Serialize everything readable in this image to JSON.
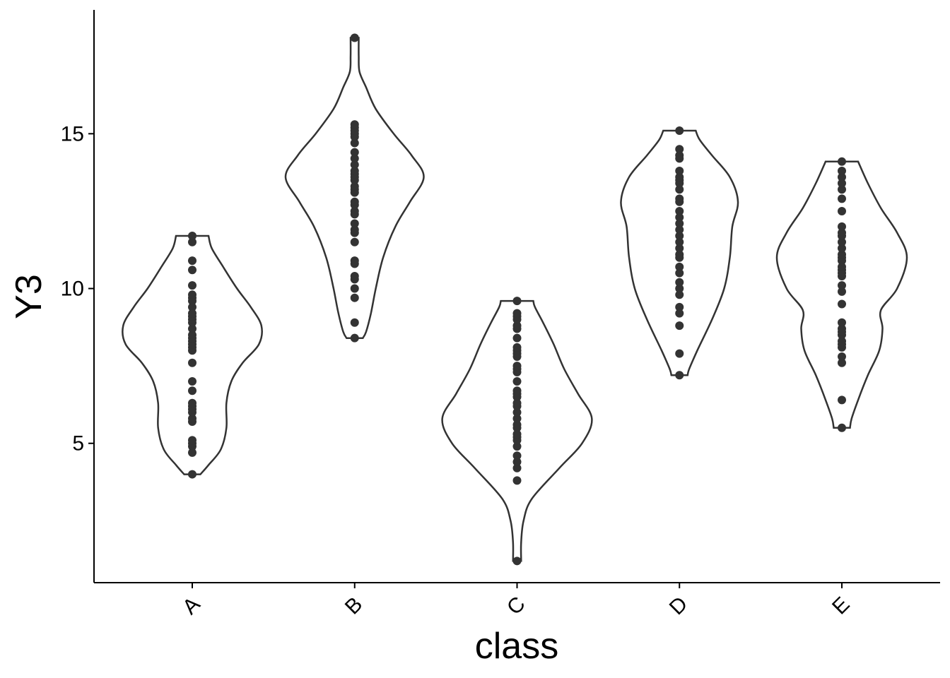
{
  "chart_data": {
    "type": "violin",
    "xlabel": "class",
    "ylabel": "Y3",
    "categories": [
      "A",
      "B",
      "C",
      "D",
      "E"
    ],
    "ylim": [
      0.5,
      19
    ],
    "yticks": [
      5,
      10,
      15
    ],
    "grid": false,
    "legend": "none",
    "colors": {
      "outline": "#333333",
      "points": "#333333",
      "fill": "#ffffff"
    },
    "violins": [
      {
        "category": "A",
        "profile": [
          [
            4.0,
            0.1
          ],
          [
            4.3,
            0.2
          ],
          [
            4.8,
            0.35
          ],
          [
            5.5,
            0.42
          ],
          [
            6.3,
            0.42
          ],
          [
            7.0,
            0.48
          ],
          [
            7.6,
            0.62
          ],
          [
            8.2,
            0.82
          ],
          [
            8.8,
            0.85
          ],
          [
            9.4,
            0.72
          ],
          [
            10.0,
            0.55
          ],
          [
            10.7,
            0.38
          ],
          [
            11.3,
            0.24
          ],
          [
            11.7,
            0.2
          ]
        ],
        "points": [
          4.0,
          4.7,
          4.9,
          5.0,
          5.1,
          5.7,
          5.8,
          6.0,
          6.1,
          6.2,
          6.3,
          6.7,
          7.0,
          7.6,
          8.0,
          8.1,
          8.2,
          8.3,
          8.4,
          8.5,
          8.7,
          8.9,
          9.0,
          9.1,
          9.2,
          9.4,
          9.6,
          9.7,
          9.8,
          10.1,
          10.6,
          10.9,
          11.5,
          11.7
        ]
      },
      {
        "category": "B",
        "profile": [
          [
            8.4,
            0.1
          ],
          [
            8.6,
            0.14
          ],
          [
            9.2,
            0.2
          ],
          [
            10.0,
            0.26
          ],
          [
            11.0,
            0.35
          ],
          [
            12.0,
            0.5
          ],
          [
            12.8,
            0.68
          ],
          [
            13.6,
            0.85
          ],
          [
            14.3,
            0.7
          ],
          [
            15.0,
            0.48
          ],
          [
            15.8,
            0.26
          ],
          [
            16.5,
            0.14
          ],
          [
            17.0,
            0.06
          ],
          [
            17.5,
            0.05
          ],
          [
            18.1,
            0.05
          ]
        ],
        "points": [
          8.4,
          8.9,
          9.7,
          10.0,
          10.3,
          10.4,
          10.8,
          10.9,
          11.5,
          11.8,
          11.9,
          12.1,
          12.4,
          12.5,
          12.7,
          12.8,
          13.1,
          13.2,
          13.3,
          13.5,
          13.6,
          13.7,
          13.8,
          14.0,
          14.2,
          14.4,
          14.7,
          14.9,
          15.0,
          15.1,
          15.2,
          15.3,
          18.1
        ]
      },
      {
        "category": "C",
        "profile": [
          [
            1.2,
            0.05
          ],
          [
            1.8,
            0.05
          ],
          [
            2.5,
            0.08
          ],
          [
            3.2,
            0.18
          ],
          [
            4.2,
            0.52
          ],
          [
            5.0,
            0.8
          ],
          [
            5.8,
            0.92
          ],
          [
            6.6,
            0.75
          ],
          [
            7.4,
            0.58
          ],
          [
            8.2,
            0.45
          ],
          [
            8.9,
            0.32
          ],
          [
            9.4,
            0.22
          ],
          [
            9.6,
            0.2
          ]
        ],
        "points": [
          1.2,
          3.8,
          4.2,
          4.4,
          4.6,
          4.9,
          5.1,
          5.2,
          5.3,
          5.5,
          5.6,
          5.8,
          6.0,
          6.2,
          6.3,
          6.5,
          6.6,
          6.7,
          7.0,
          7.3,
          7.4,
          7.5,
          7.8,
          7.9,
          8.0,
          8.1,
          8.4,
          8.7,
          8.8,
          9.0,
          9.1,
          9.2,
          9.6
        ]
      },
      {
        "category": "D",
        "profile": [
          [
            7.2,
            0.1
          ],
          [
            7.4,
            0.12
          ],
          [
            8.0,
            0.22
          ],
          [
            9.0,
            0.4
          ],
          [
            10.0,
            0.55
          ],
          [
            11.0,
            0.62
          ],
          [
            12.0,
            0.65
          ],
          [
            12.8,
            0.72
          ],
          [
            13.6,
            0.62
          ],
          [
            14.3,
            0.4
          ],
          [
            14.8,
            0.25
          ],
          [
            15.1,
            0.2
          ]
        ],
        "points": [
          7.2,
          7.9,
          8.8,
          9.2,
          9.4,
          9.8,
          10.0,
          10.2,
          10.5,
          10.7,
          11.0,
          11.1,
          11.3,
          11.5,
          11.7,
          11.9,
          12.1,
          12.3,
          12.5,
          12.8,
          12.9,
          13.2,
          13.4,
          13.5,
          13.6,
          13.8,
          14.2,
          14.3,
          14.5,
          15.1
        ]
      },
      {
        "category": "E",
        "profile": [
          [
            5.5,
            0.1
          ],
          [
            5.8,
            0.12
          ],
          [
            6.4,
            0.2
          ],
          [
            7.2,
            0.32
          ],
          [
            8.0,
            0.46
          ],
          [
            8.7,
            0.5
          ],
          [
            9.3,
            0.48
          ],
          [
            10.0,
            0.68
          ],
          [
            11.0,
            0.8
          ],
          [
            11.8,
            0.68
          ],
          [
            12.6,
            0.48
          ],
          [
            13.4,
            0.32
          ],
          [
            14.1,
            0.2
          ]
        ],
        "points": [
          5.5,
          6.4,
          7.6,
          7.8,
          8.1,
          8.2,
          8.3,
          8.5,
          8.6,
          8.7,
          8.9,
          9.5,
          9.9,
          10.1,
          10.4,
          10.5,
          10.6,
          10.7,
          10.9,
          11.0,
          11.1,
          11.3,
          11.5,
          11.7,
          11.8,
          12.0,
          12.5,
          12.9,
          13.2,
          13.4,
          13.6,
          13.8,
          14.1
        ]
      }
    ]
  }
}
